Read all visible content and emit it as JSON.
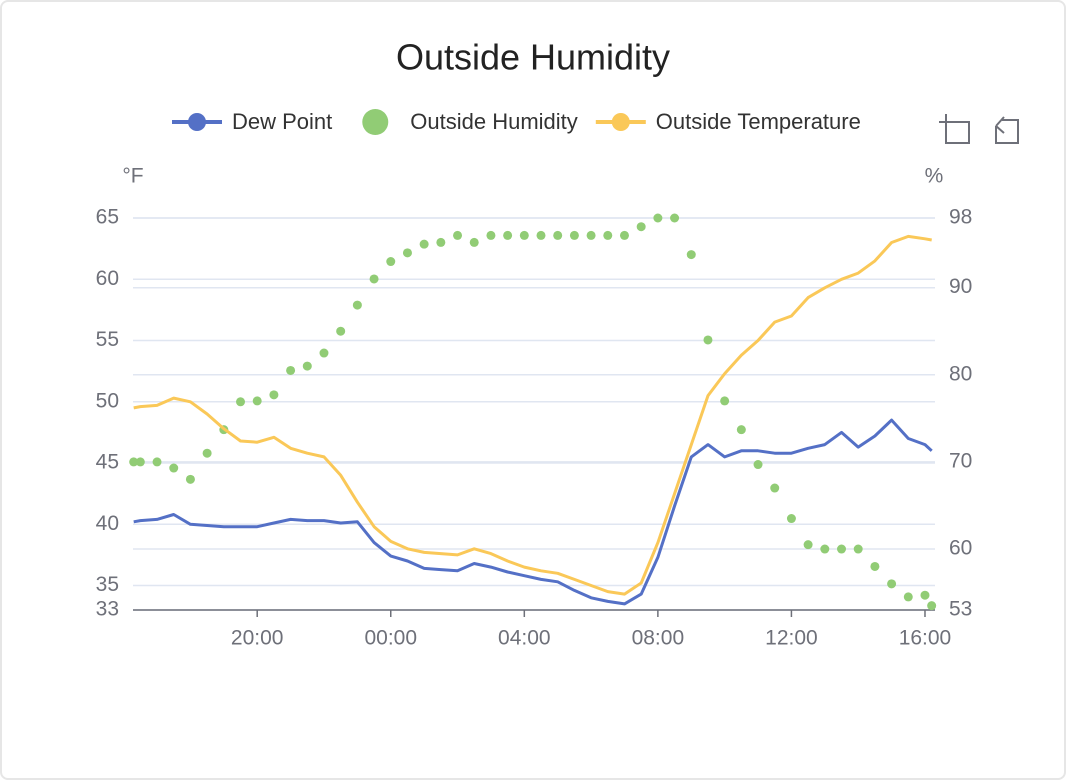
{
  "chart_data": {
    "type": "line",
    "title": "Outside Humidity",
    "y_label": "°F",
    "y2_label": "%",
    "x": [
      16.3,
      16.5,
      17,
      17.5,
      18,
      18.5,
      19,
      19.5,
      20,
      20.5,
      21,
      21.5,
      22,
      22.5,
      23,
      23.5,
      24,
      24.5,
      25,
      25.5,
      26,
      26.5,
      27,
      27.5,
      28,
      28.5,
      29,
      29.5,
      30,
      30.5,
      31,
      31.5,
      32,
      32.5,
      33,
      33.5,
      34,
      34.5,
      35,
      35.5,
      36,
      36.5,
      37,
      37.5,
      38,
      38.5,
      39,
      39.5,
      40,
      40.2
    ],
    "xlim": [
      16.28,
      40.3
    ],
    "xticks": [
      {
        "value": 20,
        "label": "20:00"
      },
      {
        "value": 24,
        "label": "00:00"
      },
      {
        "value": 28,
        "label": "04:00"
      },
      {
        "value": 32,
        "label": "08:00"
      },
      {
        "value": 36,
        "label": "12:00"
      },
      {
        "value": 40,
        "label": "16:00"
      }
    ],
    "ylim": [
      33,
      65
    ],
    "yticks": [
      33,
      35,
      40,
      45,
      50,
      55,
      60,
      65
    ],
    "y2lim": [
      53,
      98
    ],
    "y2ticks": [
      53,
      60,
      70,
      80,
      90,
      98
    ],
    "grid": true,
    "series": [
      {
        "name": "Dew Point",
        "color": "#5470c6",
        "type": "line",
        "values": [
          40.2,
          40.3,
          40.4,
          40.8,
          40.0,
          39.9,
          39.8,
          39.8,
          39.8,
          40.1,
          40.4,
          40.3,
          40.3,
          40.1,
          40.2,
          38.5,
          37.4,
          37.0,
          36.4,
          36.3,
          36.2,
          36.8,
          36.5,
          36.1,
          35.8,
          35.5,
          35.3,
          34.6,
          34.0,
          33.7,
          33.5,
          34.3,
          37.3,
          41.5,
          45.5,
          46.5,
          45.5,
          46.0,
          46.0,
          45.8,
          45.8,
          46.2,
          46.5,
          47.5,
          46.3,
          47.2,
          48.5,
          47.0,
          46.5,
          46.0
        ]
      },
      {
        "name": "Outside Humidity",
        "color": "#91cc75",
        "type": "scatter",
        "axis": "y2",
        "values": [
          70,
          70,
          70,
          69.3,
          68,
          71,
          73.7,
          76.9,
          77,
          77.7,
          80.5,
          81,
          82.5,
          85,
          88,
          91,
          93,
          94,
          95,
          95.2,
          96,
          95.2,
          96,
          96,
          96,
          96,
          96,
          96,
          96,
          96,
          96,
          97,
          98,
          98,
          93.8,
          84,
          77,
          73.7,
          69.7,
          67,
          63.5,
          60.5,
          60,
          60,
          60,
          58,
          56,
          54.5,
          54.7,
          53.5
        ]
      },
      {
        "name": "Outside Temperature",
        "color": "#fac858",
        "type": "line",
        "values": [
          49.5,
          49.6,
          49.7,
          50.3,
          50.0,
          49.0,
          47.8,
          46.8,
          46.7,
          47.1,
          46.2,
          45.8,
          45.5,
          44.0,
          41.8,
          39.8,
          38.6,
          38.0,
          37.7,
          37.6,
          37.5,
          38.0,
          37.6,
          37.0,
          36.5,
          36.2,
          36.0,
          35.5,
          35.0,
          34.5,
          34.3,
          35.2,
          38.5,
          42.5,
          46.5,
          50.5,
          52.3,
          53.8,
          55.0,
          56.5,
          57.0,
          58.5,
          59.3,
          60.0,
          60.5,
          61.5,
          63.0,
          63.5,
          63.3,
          63.2
        ]
      }
    ]
  }
}
